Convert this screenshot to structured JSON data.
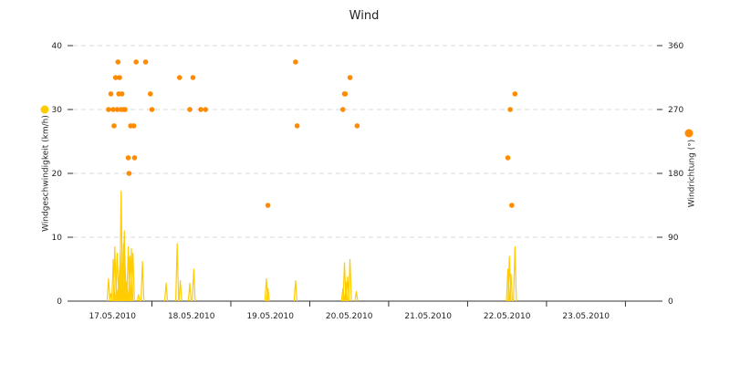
{
  "chart_data": {
    "type": "line",
    "title": "Wind",
    "y_left": {
      "label": "Windgeschwindigkeit (km/h)",
      "range": [
        0,
        40
      ],
      "ticks": [
        "0",
        "10",
        "20",
        "30",
        "40"
      ],
      "marker_color": "#ffcc00"
    },
    "y_right": {
      "label": "Windrichtung (°)",
      "range": [
        0,
        360
      ],
      "ticks": [
        "0",
        "90",
        "180",
        "270",
        "360"
      ],
      "marker_color": "#ff8c00"
    },
    "x_axis": {
      "range_days": [
        16.5,
        23.9
      ],
      "tick_days": [
        17,
        18,
        19,
        20,
        21,
        22,
        23
      ],
      "tick_labels": [
        "17.05.2010",
        "18.05.2010",
        "19.05.2010",
        "20.05.2010",
        "21.05.2010",
        "22.05.2010",
        "23.05.2010"
      ]
    },
    "grid": "horizontal dashed",
    "series": [
      {
        "kind": "speed",
        "color": "#ffcc00",
        "points": [
          [
            16.95,
            3.5
          ],
          [
            16.98,
            1.2
          ],
          [
            17.01,
            6.5
          ],
          [
            17.03,
            8.5
          ],
          [
            17.05,
            2.0
          ],
          [
            17.06,
            7.5
          ],
          [
            17.08,
            3.5
          ],
          [
            17.09,
            5.0
          ],
          [
            17.1,
            8.0
          ],
          [
            17.11,
            17.2
          ],
          [
            17.12,
            6.0
          ],
          [
            17.13,
            3.0
          ],
          [
            17.14,
            9.0
          ],
          [
            17.15,
            11.0
          ],
          [
            17.16,
            5.5
          ],
          [
            17.18,
            3.0
          ],
          [
            17.2,
            8.5
          ],
          [
            17.22,
            7.0
          ],
          [
            17.24,
            8.2
          ],
          [
            17.26,
            7.5
          ],
          [
            17.33,
            1.0
          ],
          [
            17.38,
            6.2
          ],
          [
            17.68,
            2.8
          ],
          [
            17.82,
            9.0
          ],
          [
            17.86,
            3.2
          ],
          [
            17.98,
            2.8
          ],
          [
            18.03,
            5.0
          ],
          [
            18.95,
            3.5
          ],
          [
            18.97,
            2.0
          ],
          [
            19.32,
            3.2
          ],
          [
            19.92,
            2.0
          ],
          [
            19.94,
            6.0
          ],
          [
            19.96,
            3.0
          ],
          [
            19.98,
            3.8
          ],
          [
            20.01,
            6.5
          ],
          [
            20.09,
            1.5
          ],
          [
            22.01,
            5.0
          ],
          [
            22.03,
            7.0
          ],
          [
            22.05,
            4.2
          ],
          [
            22.1,
            8.5
          ]
        ]
      },
      {
        "kind": "direction",
        "color": "#ff8c00",
        "points": [
          [
            16.95,
            270
          ],
          [
            16.98,
            292
          ],
          [
            17.01,
            270
          ],
          [
            17.02,
            247
          ],
          [
            17.04,
            315
          ],
          [
            17.06,
            270
          ],
          [
            17.07,
            337
          ],
          [
            17.08,
            292
          ],
          [
            17.09,
            315
          ],
          [
            17.11,
            270
          ],
          [
            17.12,
            292
          ],
          [
            17.14,
            270
          ],
          [
            17.16,
            270
          ],
          [
            17.2,
            202
          ],
          [
            17.21,
            180
          ],
          [
            17.23,
            247
          ],
          [
            17.27,
            247
          ],
          [
            17.28,
            202
          ],
          [
            17.3,
            337
          ],
          [
            17.42,
            337
          ],
          [
            17.48,
            292
          ],
          [
            17.5,
            270
          ],
          [
            17.85,
            315
          ],
          [
            17.98,
            270
          ],
          [
            18.02,
            315
          ],
          [
            18.12,
            270
          ],
          [
            18.18,
            270
          ],
          [
            18.97,
            135
          ],
          [
            19.32,
            337
          ],
          [
            19.34,
            247
          ],
          [
            19.92,
            270
          ],
          [
            19.94,
            292
          ],
          [
            19.95,
            292
          ],
          [
            20.01,
            315
          ],
          [
            20.1,
            247
          ],
          [
            22.01,
            202
          ],
          [
            22.04,
            270
          ],
          [
            22.06,
            135
          ],
          [
            22.1,
            292
          ]
        ]
      }
    ]
  }
}
